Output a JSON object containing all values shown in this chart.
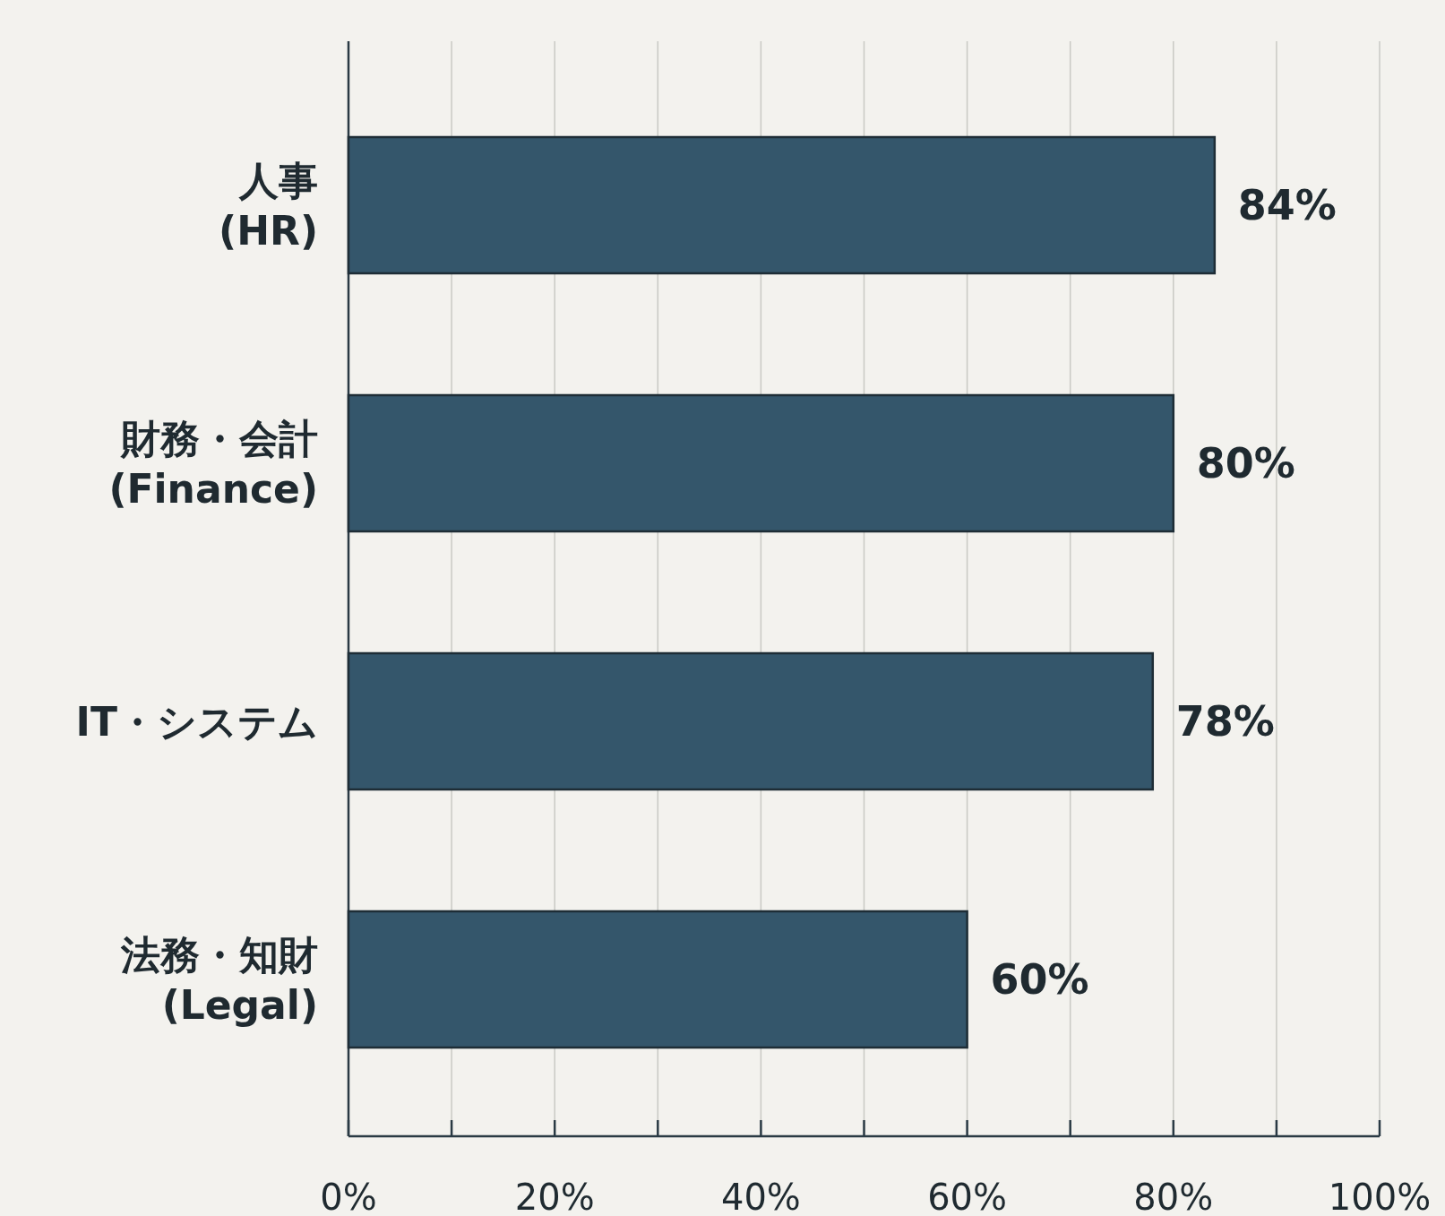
{
  "chart_data": {
    "type": "bar",
    "orientation": "horizontal",
    "categories": [
      "人事\n(HR)",
      "財務・会計\n(Finance)",
      "IT・システム",
      "法務・知財\n(Legal)"
    ],
    "values": [
      84,
      80,
      78,
      60
    ],
    "value_labels": [
      "84%",
      "80%",
      "78%",
      "60%"
    ],
    "color": "#34566b",
    "xlim": [
      0,
      100
    ],
    "xticks": [
      {
        "value": 0,
        "label": "0%"
      },
      {
        "value": 10,
        "label": null
      },
      {
        "value": 20,
        "label": "20%"
      },
      {
        "value": 30,
        "label": null
      },
      {
        "value": 40,
        "label": "40%"
      },
      {
        "value": 50,
        "label": null
      },
      {
        "value": 60,
        "label": "60%"
      },
      {
        "value": 70,
        "label": null
      },
      {
        "value": 80,
        "label": "80%"
      },
      {
        "value": 90,
        "label": null
      },
      {
        "value": 100,
        "label": "100%"
      }
    ],
    "grid": "x"
  }
}
